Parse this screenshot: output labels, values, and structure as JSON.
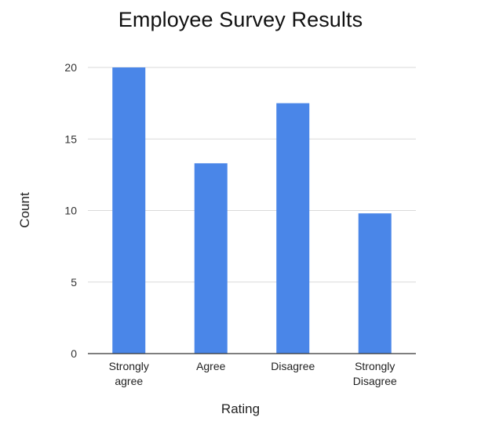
{
  "chart_data": {
    "type": "bar",
    "title": "Employee Survey Results",
    "xlabel": "Rating",
    "ylabel": "Count",
    "categories": [
      [
        "Strongly",
        "agree"
      ],
      [
        "Agree"
      ],
      [
        "Disagree"
      ],
      [
        "Strongly",
        "Disagree"
      ]
    ],
    "values": [
      20,
      13.3,
      17.5,
      9.8
    ],
    "ylim": [
      0,
      20
    ],
    "yticks": [
      "0",
      "5",
      "10",
      "15",
      "20"
    ],
    "grid": true,
    "legend": "none",
    "colors": {
      "bar": "#4a86e8",
      "grid": "#d9d9d9",
      "axis": "#333333"
    }
  }
}
